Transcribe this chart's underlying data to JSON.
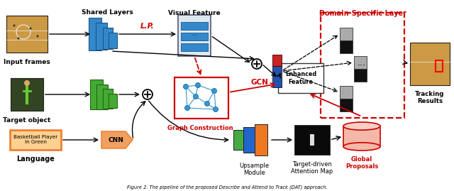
{
  "bg_color": "#ffffff",
  "labels": {
    "input_frames": "Input frames",
    "target_object": "Target object",
    "language": "Language",
    "shared_layers": "Shared Layers",
    "visual_feature": "Visual Feature",
    "domain_specific": "Domain-Specific Layer",
    "lp": "L.P.",
    "gcn": "GCN",
    "graph_construction": "Graph Construction",
    "enhanced_feature": "Enhanced\nFeature",
    "upsample": "Upsample\nModule",
    "attention_map": "Target-driven\nAttention Map",
    "global_proposals": "Global\nProposals",
    "tracking_results": "Tracking\nResults",
    "language_text": "Basketball Player\nIn Green",
    "cnn": "CNN",
    "dots": "..."
  },
  "colors": {
    "blue_cnn": "#3388cc",
    "green_cnn": "#44aa33",
    "orange": "#ee7722",
    "orange_light": "#f0a060",
    "red": "#cc0000",
    "gray_db": "#99aabb",
    "gray_db_top": "#bbccdd",
    "black": "#000000",
    "white": "#ffffff",
    "graph_node": "#3399cc",
    "graph_edge": "#3399cc",
    "bar_blue": "#2255aa",
    "bar_red": "#cc2222",
    "ds_gray_top": "#aaaaaa",
    "ds_gray_bot": "#111111",
    "upsample_green": "#44aa44",
    "upsample_blue": "#2266cc",
    "upsample_orange": "#ee7722",
    "attn_bg": "#111111",
    "attn_spot": "#ffffff",
    "gp_fill": "#f5b8a8",
    "gp_edge": "#cc0000",
    "tracking_wood": "#cc9944",
    "tracking_floor": "#ddbb88"
  }
}
